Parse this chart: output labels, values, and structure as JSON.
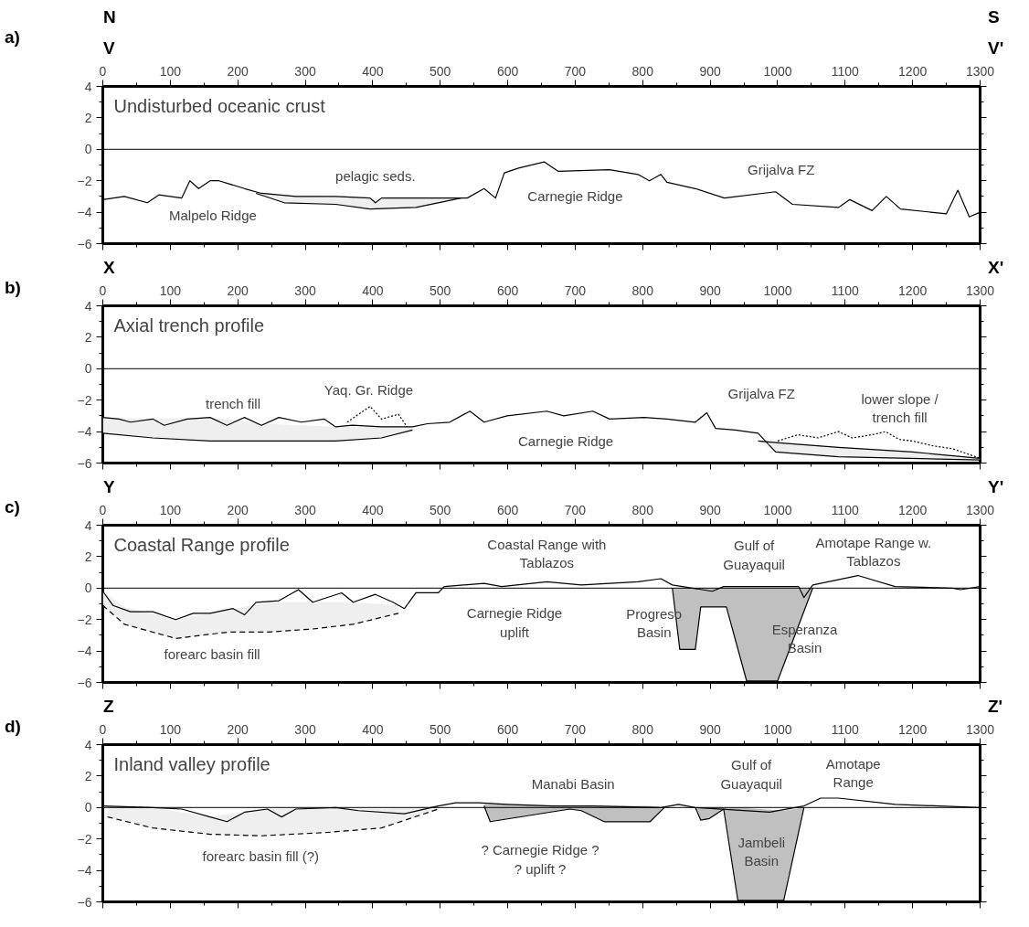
{
  "chart_data": [
    {
      "type": "line",
      "title": "a)",
      "subtitle": "Undisturbed oceanic crust",
      "xlim": [
        0,
        1300
      ],
      "ylim": [
        -6,
        4
      ],
      "xticks": [
        0,
        100,
        200,
        300,
        400,
        500,
        600,
        700,
        800,
        900,
        1000,
        1100,
        1200,
        1300
      ],
      "yticks": [
        -6,
        -4,
        -2,
        0,
        2,
        4
      ],
      "grid": false,
      "ref_lines": [
        {
          "axis": "y",
          "value": 0
        }
      ],
      "series": [
        {
          "color": "#000000",
          "x": [
            0,
            32,
            66,
            83,
            117,
            129,
            142,
            159,
            172,
            210,
            235,
            286,
            345,
            396,
            404,
            413,
            447,
            497,
            540,
            565,
            582,
            595,
            616,
            654,
            675,
            751,
            793,
            810,
            827,
            836,
            878,
            921,
            997,
            1022,
            1090,
            1107,
            1140,
            1161,
            1182,
            1250,
            1267,
            1284,
            1300
          ],
          "values": [
            -3.2,
            -3.0,
            -3.4,
            -2.9,
            -3.1,
            -2.0,
            -2.5,
            -2.0,
            -2.0,
            -2.5,
            -2.8,
            -3.0,
            -3.0,
            -3.1,
            -3.4,
            -3.1,
            -3.1,
            -3.1,
            -3.1,
            -2.5,
            -3.1,
            -1.5,
            -1.2,
            -0.8,
            -1.4,
            -1.3,
            -1.6,
            -2.0,
            -1.6,
            -2.1,
            -2.5,
            -3.1,
            -2.7,
            -3.5,
            -3.7,
            -3.2,
            -3.9,
            -3.0,
            -3.8,
            -4.1,
            -2.6,
            -4.3,
            -4.0
          ]
        },
        {
          "color": "#000000",
          "x": [
            227,
            269,
            345,
            396,
            464,
            531
          ],
          "values": [
            -2.8,
            -3.4,
            -3.5,
            -3.8,
            -3.7,
            -3.1
          ],
          "lower": [
            -2.8,
            -3.4,
            -3.5,
            -3.8,
            -3.7,
            -3.1
          ],
          "upper": [
            -2.7,
            -2.9,
            -3.0,
            -3.1,
            -3.1,
            -3.1
          ]
        }
      ],
      "annotations": [
        "V",
        "V'",
        "N",
        "S",
        {
          "text": "Malpelo Ridge",
          "x": 159,
          "y": -2.0
        },
        "pelagic seds.",
        "Carnegie Ridge",
        "Grijalva FZ"
      ]
    },
    {
      "type": "line",
      "title": "b)",
      "subtitle": "Axial trench profile",
      "xlim": [
        0,
        1300
      ],
      "ylim": [
        -6,
        4
      ],
      "xticks": [
        0,
        100,
        200,
        300,
        400,
        500,
        600,
        700,
        800,
        900,
        1000,
        1100,
        1200,
        1300
      ],
      "yticks": [
        -6,
        -4,
        -2,
        0,
        2,
        4
      ],
      "grid": false,
      "ref_lines": [
        {
          "axis": "y",
          "value": 0
        }
      ],
      "series": [
        {
          "color": "#000000",
          "x": [
            0,
            74,
            159,
            244,
            345,
            413,
            459
          ],
          "values": [
            -4.1,
            -4.4,
            -4.6,
            -4.6,
            -4.6,
            -4.4,
            -3.9
          ],
          "lower": [
            -4.1,
            -4.4,
            -4.6,
            -4.6,
            -4.6,
            -4.4,
            -3.9
          ],
          "upper": [
            -3.1,
            -3.2,
            -3.1,
            -3.5,
            -3.7,
            -3.7,
            -3.7
          ]
        },
        {
          "color": "#000000",
          "x": [
            971,
            997,
            1090,
            1200,
            1300
          ],
          "values": [
            -4.6,
            -4.7,
            -5.0,
            -5.3,
            -5.7
          ],
          "lower": [
            -4.6,
            -5.3,
            -5.6,
            -5.7,
            -5.8
          ],
          "upper": [
            -4.6,
            -4.7,
            -5.0,
            -5.3,
            -5.7
          ]
        },
        {
          "color": "#000000",
          "x": [
            0,
            24,
            41,
            74,
            91,
            125,
            159,
            184,
            210,
            235,
            261,
            294,
            328,
            345,
            370,
            413,
            459,
            481,
            514,
            544,
            565,
            599,
            658,
            683,
            726,
            751,
            802,
            836,
            878,
            895,
            908,
            937,
            971,
            997,
            1090,
            1300
          ],
          "values": [
            -3.1,
            -3.2,
            -3.4,
            -3.2,
            -3.6,
            -3.2,
            -3.1,
            -3.6,
            -3.1,
            -3.6,
            -3.1,
            -3.4,
            -3.2,
            -3.7,
            -3.6,
            -3.7,
            -3.7,
            -3.5,
            -3.4,
            -2.7,
            -3.4,
            -3.0,
            -2.7,
            -3.0,
            -2.7,
            -3.2,
            -3.1,
            -3.2,
            -3.4,
            -2.8,
            -3.8,
            -3.9,
            -4.1,
            -5.3,
            -5.6,
            -5.8
          ]
        },
        {
          "color": "#000000",
          "line_style": "dotted",
          "x": [
            362,
            396,
            413,
            438,
            451
          ],
          "values": [
            -3.4,
            -2.4,
            -3.2,
            -2.9,
            -3.7
          ]
        },
        {
          "color": "#000000",
          "line_style": "dotted",
          "x": [
            1000,
            1030,
            1060,
            1090,
            1110,
            1140,
            1160,
            1180,
            1200,
            1230,
            1260,
            1300
          ],
          "values": [
            -4.6,
            -4.2,
            -4.4,
            -4.0,
            -4.4,
            -4.2,
            -4.0,
            -4.5,
            -4.6,
            -4.9,
            -5.1,
            -5.7
          ]
        }
      ],
      "annotations": [
        "X",
        "X'",
        "trench fill",
        "Yaq. Gr. Ridge",
        "Carnegie Ridge",
        "Grijalva FZ",
        "lower slope /\ntrench fill"
      ]
    },
    {
      "type": "line",
      "title": "c)",
      "subtitle": "Coastal Range profile",
      "xlim": [
        0,
        1300
      ],
      "ylim": [
        -6,
        4
      ],
      "xticks": [
        0,
        100,
        200,
        300,
        400,
        500,
        600,
        700,
        800,
        900,
        1000,
        1100,
        1200,
        1300
      ],
      "yticks": [
        -6,
        -4,
        -2,
        0,
        2,
        4
      ],
      "grid": false,
      "ref_lines": [
        {
          "axis": "y",
          "value": 0
        }
      ],
      "series": [
        {
          "color": "#000000",
          "line_style": "dashed",
          "x": [
            0,
            32,
            108,
            185,
            244,
            311,
            371,
            438
          ],
          "values": [
            -1.1,
            -2.3,
            -3.2,
            -2.8,
            -2.8,
            -2.6,
            -2.3,
            -1.6
          ],
          "lower": [
            -1.1,
            -2.3,
            -3.2,
            -2.8,
            -2.8,
            -2.6,
            -2.3,
            -1.6
          ],
          "upper": [
            -0.2,
            -1.2,
            -2.0,
            -1.4,
            -0.9,
            -0.9,
            -0.9,
            -1.1
          ]
        },
        {
          "color": "#000000",
          "x": [
            844,
            855,
            878,
            886,
            924,
            954,
            1000,
            1052
          ],
          "values": [
            0,
            -3.9,
            -3.9,
            -1.2,
            -1.2,
            -5.9,
            -5.9,
            0
          ],
          "lower": [
            0,
            -3.9,
            -3.9,
            -1.2,
            -1.2,
            -5.9,
            -5.9,
            0
          ],
          "upper": [
            0,
            0,
            0,
            0,
            0,
            0,
            0,
            0
          ]
        },
        {
          "color": "#000000",
          "x": [
            0,
            15,
            41,
            74,
            108,
            134,
            159,
            193,
            210,
            227,
            261,
            290,
            311,
            354,
            371,
            404,
            430,
            447,
            464,
            497,
            506,
            565,
            591,
            658,
            709,
            793,
            827,
            844,
            903,
            920,
            1031,
            1039,
            1052,
            1119,
            1174,
            1259,
            1271,
            1300
          ],
          "values": [
            -0.2,
            -1.1,
            -1.5,
            -1.5,
            -2.0,
            -1.6,
            -1.6,
            -1.3,
            -1.7,
            -0.9,
            -0.8,
            -0.1,
            -0.9,
            -0.3,
            -0.9,
            -0.4,
            -0.9,
            -1.3,
            -0.3,
            -0.3,
            0.1,
            0.3,
            0.1,
            0.4,
            0.2,
            0.4,
            0.6,
            0.2,
            -0.2,
            0.1,
            0.1,
            -0.6,
            0.2,
            0.8,
            0.1,
            0.0,
            -0.1,
            0.1
          ]
        }
      ],
      "annotations": [
        "Y",
        "Y'",
        "Coastal Range with\nTablazos",
        "Gulf of\nGuayaquil",
        "Amotape Range w.\nTablazos",
        "Carnegie Ridge\nuplift",
        {
          "text": "Progreso\nBasin",
          "x": 844,
          "y": 0
        },
        "Esperanza\nBasin",
        "forearc basin fill"
      ]
    },
    {
      "type": "line",
      "title": "d)",
      "subtitle": "Inland valley profile",
      "xlim": [
        0,
        1300
      ],
      "ylim": [
        -6,
        4
      ],
      "xticks": [
        0,
        100,
        200,
        300,
        400,
        500,
        600,
        700,
        800,
        900,
        1000,
        1100,
        1200,
        1300
      ],
      "yticks": [
        -6,
        -4,
        -2,
        0,
        2,
        4
      ],
      "grid": false,
      "ref_lines": [
        {
          "axis": "y",
          "value": 0
        }
      ],
      "series": [
        {
          "color": "#000000",
          "line_style": "dashed",
          "x": [
            7,
            74,
            159,
            235,
            328,
            413,
            497
          ],
          "values": [
            -0.6,
            -1.3,
            -1.7,
            -1.8,
            -1.6,
            -1.3,
            -0.1
          ],
          "lower": [
            -0.6,
            -1.3,
            -1.7,
            -1.8,
            -1.6,
            -1.3,
            -0.1
          ],
          "upper": [
            0.1,
            0,
            -0.6,
            -0.1,
            0,
            -0.1,
            0.1
          ]
        },
        {
          "color": "#000000",
          "x": [
            565,
            574,
            692,
            709,
            743,
            811,
            832
          ],
          "values": [
            0.1,
            -0.9,
            -0.1,
            -0.2,
            -0.9,
            -0.9,
            0.0
          ],
          "lower": [
            0.1,
            -0.9,
            -0.1,
            -0.2,
            -0.9,
            -0.9,
            0.0
          ],
          "upper": [
            0.2,
            0.2,
            0.1,
            0.1,
            0.1,
            0.1,
            0.0
          ]
        },
        {
          "color": "#000000",
          "x": [
            878,
            886,
            899,
            920,
            941,
            1009,
            1039
          ],
          "values": [
            0,
            -0.8,
            -0.7,
            -0.1,
            -5.9,
            -5.9,
            0
          ],
          "lower": [
            0,
            -0.8,
            -0.7,
            -0.1,
            -5.9,
            -5.9,
            0
          ],
          "upper": [
            0,
            0,
            0,
            0,
            0,
            -0.2,
            0
          ]
        },
        {
          "color": "#000000",
          "x": [
            0,
            74,
            117,
            159,
            184,
            210,
            244,
            265,
            286,
            345,
            379,
            447,
            497,
            523,
            557,
            599,
            667,
            726,
            827,
            853,
            878,
            988,
            1039,
            1064,
            1090,
            1174,
            1300
          ],
          "values": [
            0.1,
            0,
            -0.1,
            -0.6,
            -0.9,
            -0.3,
            -0.1,
            -0.6,
            -0.1,
            0,
            -0.2,
            -0.4,
            0.1,
            0.3,
            0.3,
            0.2,
            0.1,
            0.1,
            0,
            0.2,
            0,
            -0.3,
            0.1,
            0.6,
            0.6,
            0.2,
            0
          ]
        }
      ],
      "annotations": [
        "Z",
        "Z'",
        "Manabi Basin",
        "Gulf of\nGuayaquil",
        "Amotape\nRange",
        "forearc basin fill (?)",
        "? Carnegie Ridge ?\n? uplift ?",
        "Jambeli\nBasin"
      ]
    }
  ]
}
